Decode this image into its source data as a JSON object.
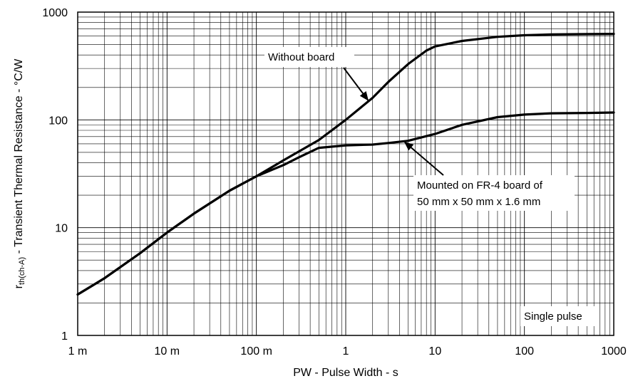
{
  "chart_data": {
    "type": "line",
    "xscale": "log",
    "yscale": "log",
    "xlim": [
      0.001,
      1000
    ],
    "ylim": [
      1,
      1000
    ],
    "grid": true,
    "xlabel": "PW - Pulse Width - s",
    "ylabel": {
      "prefix": "r",
      "subscript": "th(ch-A)",
      "suffix": " - Transient Thermal Resistance - °C/W"
    },
    "x_ticks": [
      {
        "value": 0.001,
        "label": "1 m"
      },
      {
        "value": 0.01,
        "label": "10 m"
      },
      {
        "value": 0.1,
        "label": "100 m"
      },
      {
        "value": 1,
        "label": "1"
      },
      {
        "value": 10,
        "label": "10"
      },
      {
        "value": 100,
        "label": "100"
      },
      {
        "value": 1000,
        "label": "1000"
      }
    ],
    "y_ticks": [
      {
        "value": 1,
        "label": "1"
      },
      {
        "value": 10,
        "label": "10"
      },
      {
        "value": 100,
        "label": "100"
      },
      {
        "value": 1000,
        "label": "1000"
      }
    ],
    "series": [
      {
        "id": "without-board",
        "points": [
          [
            0.001,
            2.4
          ],
          [
            0.002,
            3.4
          ],
          [
            0.005,
            5.8
          ],
          [
            0.01,
            9
          ],
          [
            0.02,
            13.5
          ],
          [
            0.05,
            22
          ],
          [
            0.1,
            30
          ],
          [
            0.2,
            42
          ],
          [
            0.5,
            65
          ],
          [
            1,
            100
          ],
          [
            2,
            160
          ],
          [
            3,
            225
          ],
          [
            5,
            330
          ],
          [
            8,
            440
          ],
          [
            10,
            480
          ],
          [
            20,
            540
          ],
          [
            50,
            590
          ],
          [
            100,
            610
          ],
          [
            200,
            620
          ],
          [
            500,
            625
          ],
          [
            1000,
            628
          ]
        ]
      },
      {
        "id": "fr4-board",
        "points": [
          [
            0.001,
            2.4
          ],
          [
            0.002,
            3.4
          ],
          [
            0.005,
            5.8
          ],
          [
            0.01,
            9
          ],
          [
            0.02,
            13.5
          ],
          [
            0.05,
            22
          ],
          [
            0.1,
            30
          ],
          [
            0.2,
            38
          ],
          [
            0.3,
            45
          ],
          [
            0.5,
            55
          ],
          [
            1,
            58
          ],
          [
            2,
            59
          ],
          [
            3,
            61
          ],
          [
            5,
            64
          ],
          [
            10,
            74
          ],
          [
            20,
            90
          ],
          [
            50,
            106
          ],
          [
            100,
            112
          ],
          [
            200,
            115
          ],
          [
            500,
            116
          ],
          [
            1000,
            117
          ]
        ]
      }
    ],
    "annotations": [
      {
        "id": "without-board-note",
        "lines": [
          "Without board"
        ],
        "target": [
          1.8,
          150
        ]
      },
      {
        "id": "fr4-note",
        "lines": [
          "Mounted on FR-4 board of",
          "50 mm x 50 mm x 1.6 mm"
        ],
        "target": [
          4.5,
          63
        ]
      },
      {
        "id": "pulse-note",
        "lines": [
          "Single pulse"
        ]
      }
    ]
  }
}
